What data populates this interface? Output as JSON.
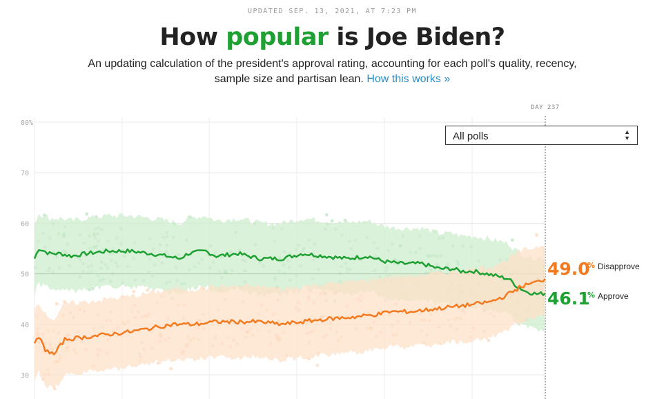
{
  "header": {
    "updated": "UPDATED SEP. 13, 2021, AT 7:23 PM",
    "title_pre": "How ",
    "title_accent": "popular",
    "title_post": " is Joe Biden?",
    "subtitle": "An updating calculation of the president's approval rating, accounting for each poll's quality, recency, sample size and partisan lean.",
    "subtitle_link": "How this works »"
  },
  "filter": {
    "selected": "All polls"
  },
  "colors": {
    "approve": "#1ea032",
    "disapprove": "#f47a1f",
    "approve_band": "#cdeccd",
    "disapprove_band": "#fde0c8"
  },
  "chart_data": {
    "type": "line",
    "title": "",
    "xlabel": "",
    "ylabel": "",
    "ylim": [
      28,
      82
    ],
    "xlim": [
      1,
      237
    ],
    "y_ticks": [
      "80%",
      "70",
      "60",
      "50",
      "40",
      "30"
    ],
    "y_tick_values": [
      80,
      70,
      60,
      50,
      40,
      30
    ],
    "grid": true,
    "current_day_label": "DAY 237",
    "current_day": 237,
    "legend_position": "right-of-end",
    "series": [
      {
        "name": "Approve",
        "latest_value": "46.1",
        "latest_suffix": "%",
        "band_width": 7,
        "points": [
          [
            1,
            53
          ],
          [
            3,
            55
          ],
          [
            8,
            54
          ],
          [
            13,
            54
          ],
          [
            18,
            53.5
          ],
          [
            25,
            54
          ],
          [
            35,
            54.5
          ],
          [
            45,
            54.5
          ],
          [
            55,
            54
          ],
          [
            62,
            53.5
          ],
          [
            68,
            53
          ],
          [
            72,
            54
          ],
          [
            80,
            54.5
          ],
          [
            85,
            53.5
          ],
          [
            95,
            54
          ],
          [
            105,
            53
          ],
          [
            115,
            53
          ],
          [
            125,
            54
          ],
          [
            135,
            53.5
          ],
          [
            145,
            53
          ],
          [
            155,
            53.5
          ],
          [
            162,
            52.5
          ],
          [
            170,
            52
          ],
          [
            180,
            52
          ],
          [
            188,
            51
          ],
          [
            194,
            51
          ],
          [
            198,
            50.5
          ],
          [
            204,
            50.5
          ],
          [
            210,
            50
          ],
          [
            215,
            49.5
          ],
          [
            220,
            49
          ],
          [
            224,
            47.5
          ],
          [
            228,
            46.5
          ],
          [
            233,
            46
          ],
          [
            237,
            46.1
          ]
        ]
      },
      {
        "name": "Disapprove",
        "latest_value": "49.0",
        "latest_suffix": "%",
        "band_width": 7,
        "points": [
          [
            1,
            36
          ],
          [
            3,
            37.5
          ],
          [
            6,
            35
          ],
          [
            10,
            34
          ],
          [
            15,
            37
          ],
          [
            25,
            37.5
          ],
          [
            35,
            38
          ],
          [
            45,
            38.5
          ],
          [
            52,
            39
          ],
          [
            58,
            39.5
          ],
          [
            65,
            40
          ],
          [
            75,
            40
          ],
          [
            85,
            40.5
          ],
          [
            95,
            40.5
          ],
          [
            105,
            40.5
          ],
          [
            115,
            40
          ],
          [
            125,
            40.5
          ],
          [
            135,
            41
          ],
          [
            150,
            41.5
          ],
          [
            160,
            42
          ],
          [
            165,
            42.5
          ],
          [
            175,
            42.5
          ],
          [
            185,
            43
          ],
          [
            195,
            43.5
          ],
          [
            205,
            44
          ],
          [
            212,
            44.5
          ],
          [
            218,
            45.5
          ],
          [
            222,
            46.5
          ],
          [
            226,
            47.5
          ],
          [
            230,
            48
          ],
          [
            234,
            48.5
          ],
          [
            237,
            49
          ]
        ]
      }
    ]
  }
}
